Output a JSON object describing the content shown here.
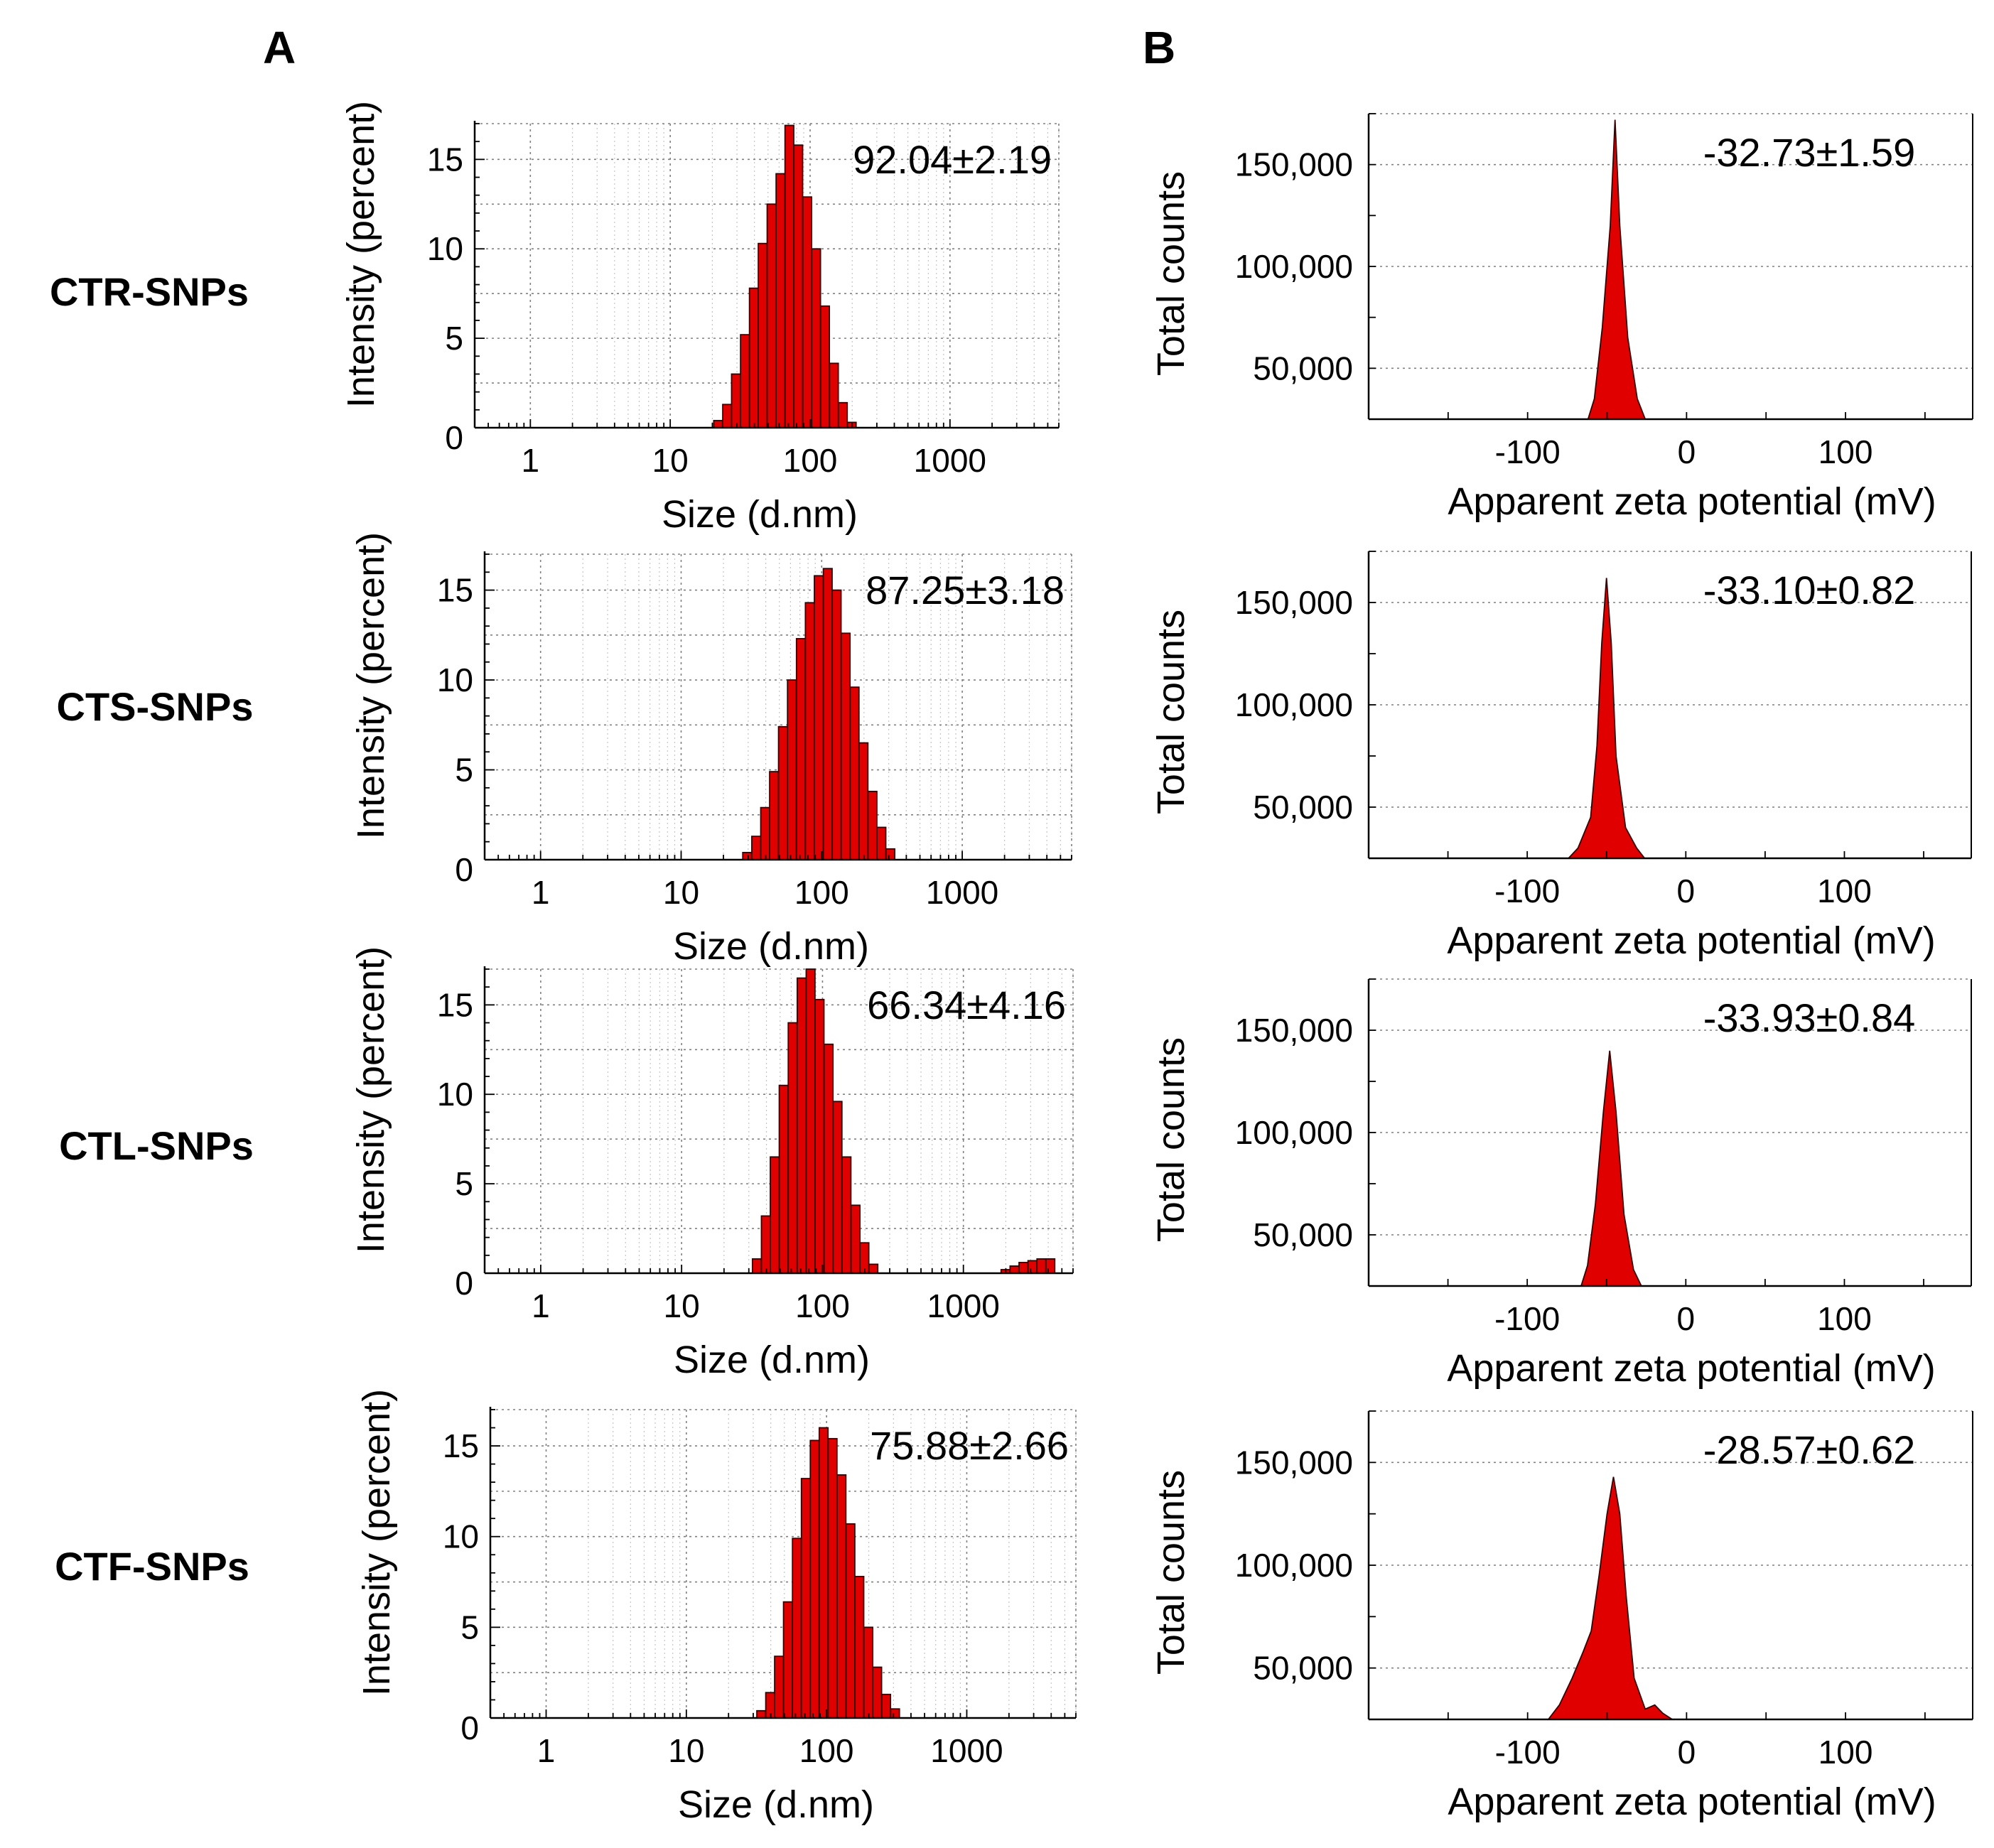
{
  "panels": {
    "a_label": "A",
    "b_label": "B"
  },
  "rows": [
    {
      "sample": "CTR-SNPs"
    },
    {
      "sample": "CTS-SNPs"
    },
    {
      "sample": "CTL-SNPs"
    },
    {
      "sample": "CTF-SNPs"
    }
  ],
  "colors": {
    "bar_fill": "#e00000",
    "bar_edge": "#3a0000",
    "grid": "#808080",
    "axis": "#000000"
  },
  "chart_data": [
    {
      "id": "A-CTR",
      "type": "bar",
      "panel": "A",
      "sample": "CTR-SNPs",
      "scale": "log",
      "xlabel": "Size (d.nm)",
      "ylabel": "Intensity (percent)",
      "x_ticks": [
        1,
        10,
        100,
        1000
      ],
      "y_ticks": [
        0,
        5,
        10,
        15
      ],
      "xlim": [
        0.4,
        6000
      ],
      "ylim": [
        0,
        17
      ],
      "grid": true,
      "annotation": "92.04±2.19",
      "bins": [
        {
          "x": 22,
          "y": 0.4
        },
        {
          "x": 25.5,
          "y": 1.3
        },
        {
          "x": 29.5,
          "y": 3.0
        },
        {
          "x": 34.2,
          "y": 5.2
        },
        {
          "x": 39.6,
          "y": 7.8
        },
        {
          "x": 45.8,
          "y": 10.3
        },
        {
          "x": 53,
          "y": 12.5
        },
        {
          "x": 61.4,
          "y": 14.2
        },
        {
          "x": 71.1,
          "y": 16.9
        },
        {
          "x": 82.3,
          "y": 15.8
        },
        {
          "x": 95.3,
          "y": 12.9
        },
        {
          "x": 110.4,
          "y": 10.0
        },
        {
          "x": 127.8,
          "y": 6.8
        },
        {
          "x": 148,
          "y": 3.6
        },
        {
          "x": 171.4,
          "y": 1.4
        },
        {
          "x": 198.4,
          "y": 0.3
        }
      ]
    },
    {
      "id": "A-CTS",
      "type": "bar",
      "panel": "A",
      "sample": "CTS-SNPs",
      "scale": "log",
      "xlabel": "Size (d.nm)",
      "ylabel": "Intensity (percent)",
      "x_ticks": [
        1,
        10,
        100,
        1000
      ],
      "y_ticks": [
        0,
        5,
        10,
        15
      ],
      "xlim": [
        0.4,
        6000
      ],
      "ylim": [
        0,
        17
      ],
      "grid": true,
      "annotation": "87.25±3.18",
      "bins": [
        {
          "x": 29.5,
          "y": 0.4
        },
        {
          "x": 34.2,
          "y": 1.3
        },
        {
          "x": 39.6,
          "y": 2.9
        },
        {
          "x": 45.8,
          "y": 4.9
        },
        {
          "x": 53,
          "y": 7.4
        },
        {
          "x": 61.4,
          "y": 10.0
        },
        {
          "x": 71.1,
          "y": 12.3
        },
        {
          "x": 82.3,
          "y": 14.3
        },
        {
          "x": 95.3,
          "y": 15.8
        },
        {
          "x": 110.4,
          "y": 16.2
        },
        {
          "x": 127.8,
          "y": 15.0
        },
        {
          "x": 148,
          "y": 12.6
        },
        {
          "x": 171.4,
          "y": 9.6
        },
        {
          "x": 198.4,
          "y": 6.5
        },
        {
          "x": 229.7,
          "y": 3.8
        },
        {
          "x": 266,
          "y": 1.8
        },
        {
          "x": 308,
          "y": 0.6
        }
      ]
    },
    {
      "id": "A-CTL",
      "type": "bar",
      "panel": "A",
      "sample": "CTL-SNPs",
      "scale": "log",
      "xlabel": "Size (d.nm)",
      "ylabel": "Intensity (percent)",
      "x_ticks": [
        1,
        10,
        100,
        1000
      ],
      "y_ticks": [
        0,
        5,
        10,
        15
      ],
      "xlim": [
        0.4,
        6000
      ],
      "ylim": [
        0,
        17
      ],
      "grid": true,
      "annotation": "66.34±4.16",
      "bins": [
        {
          "x": 34.2,
          "y": 0.8
        },
        {
          "x": 39.6,
          "y": 3.2
        },
        {
          "x": 45.8,
          "y": 6.5
        },
        {
          "x": 53,
          "y": 10.5
        },
        {
          "x": 61.4,
          "y": 14.0
        },
        {
          "x": 71.1,
          "y": 16.5
        },
        {
          "x": 82.3,
          "y": 17.0
        },
        {
          "x": 95.3,
          "y": 15.3
        },
        {
          "x": 110.4,
          "y": 12.8
        },
        {
          "x": 127.8,
          "y": 9.6
        },
        {
          "x": 148,
          "y": 6.5
        },
        {
          "x": 171.4,
          "y": 3.8
        },
        {
          "x": 198.4,
          "y": 1.7
        },
        {
          "x": 229.7,
          "y": 0.5
        },
        {
          "x": 1990,
          "y": 0.2
        },
        {
          "x": 2304,
          "y": 0.4
        },
        {
          "x": 2668,
          "y": 0.6
        },
        {
          "x": 3089,
          "y": 0.7
        },
        {
          "x": 3577,
          "y": 0.8
        },
        {
          "x": 4142,
          "y": 0.8
        }
      ]
    },
    {
      "id": "A-CTF",
      "type": "bar",
      "panel": "A",
      "sample": "CTF-SNPs",
      "scale": "log",
      "xlabel": "Size (d.nm)",
      "ylabel": "Intensity (percent)",
      "x_ticks": [
        1,
        10,
        100,
        1000
      ],
      "y_ticks": [
        0,
        5,
        10,
        15
      ],
      "xlim": [
        0.4,
        6000
      ],
      "ylim": [
        0,
        17
      ],
      "grid": true,
      "annotation": "75.88±2.66",
      "bins": [
        {
          "x": 34.2,
          "y": 0.4
        },
        {
          "x": 39.6,
          "y": 1.4
        },
        {
          "x": 45.8,
          "y": 3.4
        },
        {
          "x": 53,
          "y": 6.4
        },
        {
          "x": 61.4,
          "y": 9.9
        },
        {
          "x": 71.1,
          "y": 13.2
        },
        {
          "x": 82.3,
          "y": 15.3
        },
        {
          "x": 95.3,
          "y": 16.0
        },
        {
          "x": 110.4,
          "y": 15.4
        },
        {
          "x": 127.8,
          "y": 13.4
        },
        {
          "x": 148,
          "y": 10.7
        },
        {
          "x": 171.4,
          "y": 7.8
        },
        {
          "x": 198.4,
          "y": 5.0
        },
        {
          "x": 229.7,
          "y": 2.8
        },
        {
          "x": 266,
          "y": 1.3
        },
        {
          "x": 308,
          "y": 0.5
        }
      ]
    },
    {
      "id": "B-CTR",
      "type": "area",
      "panel": "B",
      "sample": "CTR-SNPs",
      "xlabel": "Apparent zeta potential (mV)",
      "ylabel": "Total counts",
      "x_ticks": [
        -100,
        0,
        100
      ],
      "x_tick_labels": [
        "-100",
        "0",
        "100"
      ],
      "y_ticks": [
        50000,
        100000,
        150000
      ],
      "y_tick_labels": [
        "50,000",
        "100,000",
        "150,000"
      ],
      "xlim": [
        -200,
        180
      ],
      "ylim": [
        25000,
        175000
      ],
      "grid": true,
      "annotation": "-32.73±1.59",
      "points": [
        [
          -62,
          25000
        ],
        [
          -58,
          35000
        ],
        [
          -53,
          70000
        ],
        [
          -48,
          120000
        ],
        [
          -45,
          172000
        ],
        [
          -42,
          120000
        ],
        [
          -37,
          65000
        ],
        [
          -31,
          35000
        ],
        [
          -26,
          25000
        ]
      ]
    },
    {
      "id": "B-CTS",
      "type": "area",
      "panel": "B",
      "sample": "CTS-SNPs",
      "xlabel": "Apparent zeta potential (mV)",
      "ylabel": "Total counts",
      "x_ticks": [
        -100,
        0,
        100
      ],
      "x_tick_labels": [
        "-100",
        "0",
        "100"
      ],
      "y_ticks": [
        50000,
        100000,
        150000
      ],
      "y_tick_labels": [
        "50,000",
        "100,000",
        "150,000"
      ],
      "xlim": [
        -200,
        180
      ],
      "ylim": [
        25000,
        175000
      ],
      "grid": true,
      "annotation": "-33.10±0.82",
      "points": [
        [
          -74,
          25000
        ],
        [
          -68,
          30000
        ],
        [
          -60,
          45000
        ],
        [
          -56,
          80000
        ],
        [
          -53,
          130000
        ],
        [
          -50,
          162000
        ],
        [
          -47,
          130000
        ],
        [
          -44,
          75000
        ],
        [
          -38,
          40000
        ],
        [
          -31,
          30000
        ],
        [
          -26,
          25000
        ]
      ]
    },
    {
      "id": "B-CTL",
      "type": "area",
      "panel": "B",
      "sample": "CTL-SNPs",
      "xlabel": "Apparent zeta potential (mV)",
      "ylabel": "Total counts",
      "x_ticks": [
        -100,
        0,
        100
      ],
      "x_tick_labels": [
        "-100",
        "0",
        "100"
      ],
      "y_ticks": [
        50000,
        100000,
        150000
      ],
      "y_tick_labels": [
        "50,000",
        "100,000",
        "150,000"
      ],
      "xlim": [
        -200,
        180
      ],
      "ylim": [
        25000,
        175000
      ],
      "grid": true,
      "annotation": "-33.93±0.84",
      "points": [
        [
          -66,
          25000
        ],
        [
          -62,
          35000
        ],
        [
          -57,
          65000
        ],
        [
          -52,
          110000
        ],
        [
          -48,
          140000
        ],
        [
          -44,
          110000
        ],
        [
          -39,
          60000
        ],
        [
          -33,
          33000
        ],
        [
          -28,
          25000
        ]
      ]
    },
    {
      "id": "B-CTF",
      "type": "area",
      "panel": "B",
      "sample": "CTF-SNPs",
      "xlabel": "Apparent zeta potential (mV)",
      "ylabel": "Total counts",
      "x_ticks": [
        -100,
        0,
        100
      ],
      "x_tick_labels": [
        "-100",
        "0",
        "100"
      ],
      "y_ticks": [
        50000,
        100000,
        150000
      ],
      "y_tick_labels": [
        "50,000",
        "100,000",
        "150,000"
      ],
      "xlim": [
        -200,
        180
      ],
      "ylim": [
        25000,
        175000
      ],
      "grid": true,
      "annotation": "-28.57±0.62",
      "points": [
        [
          -87,
          25000
        ],
        [
          -80,
          32000
        ],
        [
          -72,
          45000
        ],
        [
          -65,
          58000
        ],
        [
          -60,
          68000
        ],
        [
          -55,
          95000
        ],
        [
          -50,
          125000
        ],
        [
          -46,
          143000
        ],
        [
          -42,
          125000
        ],
        [
          -38,
          85000
        ],
        [
          -33,
          45000
        ],
        [
          -26,
          30000
        ],
        [
          -20,
          32000
        ],
        [
          -15,
          28000
        ],
        [
          -9,
          25000
        ]
      ]
    }
  ]
}
